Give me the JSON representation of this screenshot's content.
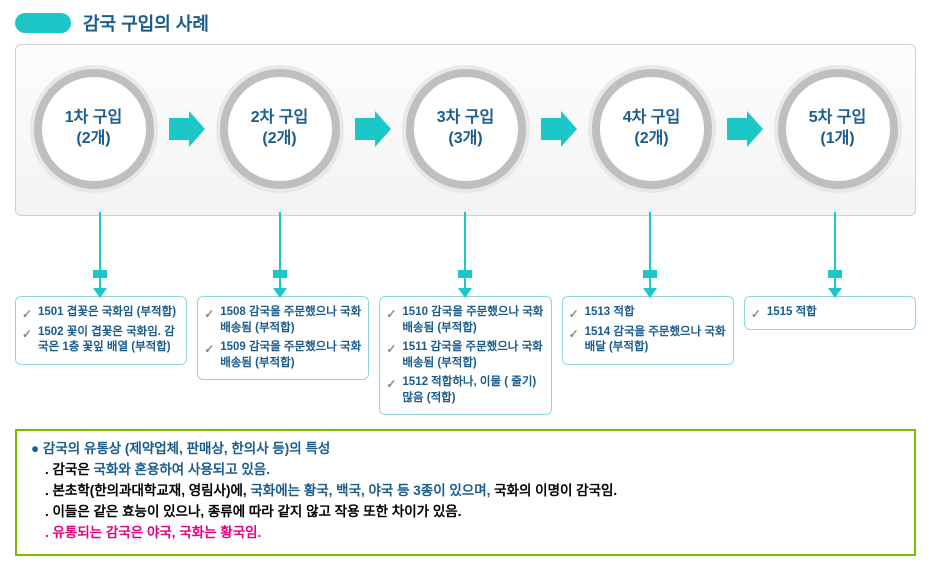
{
  "colors": {
    "teal": "#1ec7c7",
    "tealLight": "#6ed9d9",
    "nodeBorder": "#bfbfbf",
    "nodeText": "#1a5c8e",
    "boxBorder": "#8fd9d9",
    "summaryBorder": "#7fb800",
    "checkColor": "#8a8a8a",
    "titleColor": "#1a5c8e"
  },
  "title": "감국 구입의 사례",
  "nodes": [
    {
      "l1": "1차 구입",
      "l2": "(2개)"
    },
    {
      "l1": "2차 구입",
      "l2": "(2개)"
    },
    {
      "l1": "3차 구입",
      "l2": "(3개)"
    },
    {
      "l1": "4차 구입",
      "l2": "(2개)"
    },
    {
      "l1": "5차 구입",
      "l2": "(1개)"
    }
  ],
  "connX": [
    85,
    265,
    450,
    635,
    820
  ],
  "details": [
    [
      "1501 겹꽃은 국화임 (부적합)",
      "1502 꽃이 겹꽃은 국화임. 감국은 1층 꽃잎 배열 (부적합)"
    ],
    [
      "1508 감국을 주문했으나 국화 배송됨 (부적합)",
      "1509 감국을 주문했으나 국화 배송됨 (부적합)"
    ],
    [
      "1510 감국을 주문했으나 국화 배송됨 (부적합)",
      "1511 감국을 주문했으나 국화 배송됨 (부적합)",
      "1512 적합하나, 이물 ( 줄기) 많음  (적합)"
    ],
    [
      "1513 적합",
      "1514 감국을 주문했으나 국화 배달 (부적합)"
    ],
    [
      "1515 적합"
    ]
  ],
  "summary": {
    "lead": "● 감국의 유통상 (제약업체, 판매상, 한의사 등)의 특성",
    "l1a": ". 감국은 ",
    "l1b": "국화와 혼용하여 사용되고 있음.",
    "l2a": ". 본초학(한의과대학교재, 영림사)에, ",
    "l2b": "국화에는 황국, 백국, 야국 등 3종이 있으며, ",
    "l2c": "국화의 이명이 감국임.",
    "l3": ". 이들은 같은 효능이 있으나, 종류에 따라 같지 않고 작용 또한 차이가 있음.",
    "l4": ". 유통되는 감국은 야국, 국화는 황국임."
  }
}
